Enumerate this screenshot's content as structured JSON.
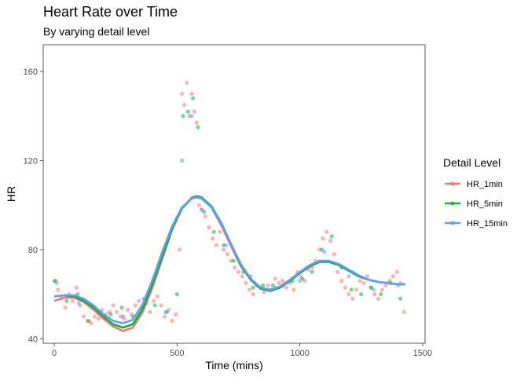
{
  "title": "Heart Rate over Time",
  "subtitle": "By varying detail level",
  "chart_data": {
    "type": "scatter",
    "title": "Heart Rate over Time",
    "subtitle": "By varying detail level",
    "xlabel": "Time (mins)",
    "ylabel": "HR",
    "xlim": [
      -45,
      1510
    ],
    "ylim": [
      38,
      172
    ],
    "x_ticks": [
      0,
      500,
      1000,
      1500
    ],
    "y_ticks": [
      40,
      80,
      120,
      160
    ],
    "grid": false,
    "legend": {
      "title": "Detail Level",
      "position": "right",
      "entries": [
        "HR_1min",
        "HR_5min",
        "HR_15min"
      ]
    },
    "series": [
      {
        "name": "HR_1min",
        "color": "#F8766D",
        "points_x": [
          0,
          15,
          30,
          45,
          60,
          75,
          90,
          105,
          120,
          135,
          150,
          165,
          180,
          195,
          210,
          225,
          240,
          255,
          270,
          285,
          300,
          315,
          330,
          345,
          360,
          375,
          390,
          405,
          420,
          435,
          450,
          465,
          480,
          495,
          510,
          520,
          530,
          540,
          550,
          560,
          570,
          580,
          590,
          600,
          615,
          630,
          645,
          660,
          675,
          690,
          705,
          720,
          735,
          750,
          765,
          780,
          795,
          810,
          825,
          840,
          855,
          870,
          885,
          900,
          915,
          930,
          945,
          960,
          975,
          990,
          1005,
          1020,
          1035,
          1050,
          1065,
          1080,
          1095,
          1110,
          1125,
          1140,
          1155,
          1170,
          1185,
          1200,
          1215,
          1230,
          1245,
          1260,
          1275,
          1290,
          1305,
          1320,
          1335,
          1350,
          1365,
          1380,
          1395,
          1410,
          1425
        ],
        "points_y": [
          66,
          62,
          58,
          54,
          60,
          57,
          63,
          55,
          50,
          48,
          47,
          50,
          49,
          53,
          51,
          52,
          55,
          52,
          50,
          49,
          53,
          51,
          55,
          57,
          54,
          56,
          52,
          57,
          59,
          55,
          50,
          53,
          48,
          51,
          80,
          150,
          145,
          155,
          140,
          150,
          142,
          137,
          100,
          98,
          95,
          90,
          85,
          82,
          88,
          80,
          78,
          75,
          72,
          70,
          68,
          65,
          62,
          60,
          64,
          63,
          61,
          64,
          62,
          67,
          65,
          66,
          63,
          65,
          62,
          70,
          68,
          66,
          71,
          72,
          75,
          80,
          85,
          88,
          84,
          78,
          70,
          66,
          63,
          60,
          58,
          62,
          66,
          65,
          68,
          63,
          60,
          58,
          62,
          64,
          66,
          68,
          70,
          65,
          52
        ],
        "smooth_x": [
          0,
          40,
          80,
          120,
          160,
          200,
          240,
          280,
          320,
          360,
          400,
          440,
          480,
          520,
          560,
          580,
          600,
          640,
          680,
          720,
          760,
          800,
          840,
          880,
          920,
          960,
          1000,
          1040,
          1080,
          1120,
          1160,
          1200,
          1240,
          1280,
          1320,
          1360,
          1400,
          1430
        ],
        "smooth_y": [
          57,
          58.5,
          58.5,
          56.5,
          53,
          49,
          45.5,
          43.5,
          45,
          52,
          63,
          76,
          89,
          98.5,
          103.5,
          104,
          103.5,
          99,
          91,
          81.5,
          72.5,
          66.5,
          62.5,
          61.5,
          63,
          66,
          69.5,
          72.5,
          74.5,
          74.5,
          73,
          70.5,
          68,
          66.5,
          65.5,
          65,
          64.5,
          64.5
        ]
      },
      {
        "name": "HR_5min",
        "color": "#00BA38",
        "points_x": [
          5,
          50,
          95,
          140,
          185,
          230,
          275,
          320,
          365,
          410,
          455,
          500,
          525,
          545,
          565,
          585,
          610,
          650,
          690,
          730,
          770,
          810,
          850,
          890,
          930,
          970,
          1010,
          1050,
          1090,
          1130,
          1170,
          1210,
          1250,
          1290,
          1330,
          1370,
          1410
        ],
        "points_y": [
          66,
          57,
          60,
          48,
          52,
          51,
          54,
          50,
          58,
          55,
          52,
          60,
          140,
          142,
          148,
          135,
          97,
          88,
          82,
          75,
          70,
          63,
          64,
          64,
          64,
          66,
          67,
          70,
          80,
          86,
          72,
          62,
          60,
          63,
          60,
          65,
          58
        ],
        "smooth_x": [
          0,
          40,
          80,
          120,
          160,
          200,
          240,
          280,
          320,
          360,
          400,
          440,
          480,
          520,
          560,
          580,
          600,
          640,
          680,
          720,
          760,
          800,
          840,
          880,
          920,
          960,
          1000,
          1040,
          1080,
          1120,
          1160,
          1200,
          1240,
          1280,
          1320,
          1360,
          1400,
          1430
        ],
        "smooth_y": [
          59,
          59.5,
          59,
          57,
          54,
          50,
          46.5,
          45,
          46.5,
          53.5,
          64.5,
          77,
          89.5,
          98.5,
          103,
          104,
          103.5,
          99.5,
          92,
          82.5,
          73,
          66.5,
          62.5,
          61.5,
          63,
          66,
          69.5,
          72.5,
          74.5,
          74.5,
          73,
          70.5,
          68,
          66.5,
          65.5,
          65,
          64.5,
          64.5
        ]
      },
      {
        "name": "HR_15min",
        "color": "#619CFF",
        "points_x": [
          10,
          100,
          190,
          280,
          370,
          460,
          520,
          560,
          600,
          700,
          800,
          900,
          1000,
          1100,
          1200,
          1300,
          1400
        ],
        "points_y": [
          65,
          56,
          51,
          50,
          56,
          52,
          120,
          140,
          98,
          82,
          68,
          63,
          66,
          79,
          68,
          62,
          64
        ],
        "smooth_x": [
          0,
          40,
          80,
          120,
          160,
          200,
          240,
          280,
          320,
          360,
          400,
          440,
          480,
          520,
          560,
          580,
          600,
          640,
          680,
          720,
          760,
          800,
          840,
          880,
          920,
          960,
          1000,
          1040,
          1080,
          1120,
          1160,
          1200,
          1240,
          1280,
          1320,
          1360,
          1400,
          1430
        ],
        "smooth_y": [
          59,
          59.5,
          59.5,
          58,
          55,
          51,
          48,
          47,
          48.5,
          55.5,
          66.5,
          79,
          90.5,
          99,
          103,
          103.5,
          103,
          99,
          91.5,
          82.5,
          73.5,
          67,
          63,
          62,
          63.5,
          66.5,
          70,
          73,
          75,
          75,
          73.5,
          71,
          68.5,
          66.5,
          65.5,
          65,
          64.5,
          64.5
        ]
      }
    ]
  }
}
